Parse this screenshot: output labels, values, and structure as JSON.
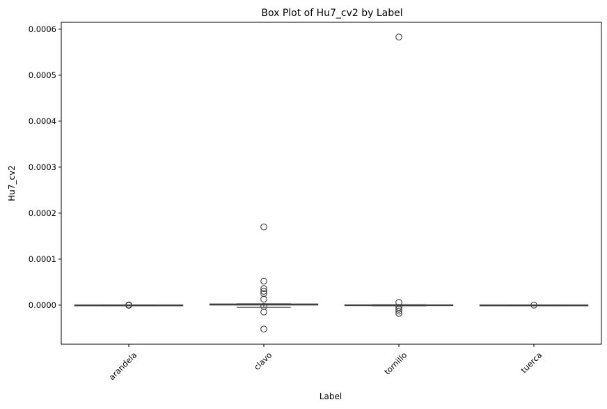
{
  "chart_data": {
    "type": "box",
    "title": "Box Plot of Hu7_cv2 by Label",
    "xlabel": "Label",
    "ylabel": "Hu7_cv2",
    "ylim": [
      -8.5e-05,
      0.000615
    ],
    "yticks": [
      0.0,
      0.0001,
      0.0002,
      0.0003,
      0.0004,
      0.0005,
      0.0006
    ],
    "ytick_labels": [
      "0.0000",
      "0.0001",
      "0.0002",
      "0.0003",
      "0.0004",
      "0.0005",
      "0.0006"
    ],
    "xtick_rotation": 45,
    "grid": false,
    "legend": "none",
    "box_color": "#ffffff",
    "line_color": "#3f3f3f",
    "categories": [
      "arandela",
      "clavo",
      "tornillo",
      "tuerca"
    ],
    "boxes": [
      {
        "label": "arandela",
        "q1": 0.0,
        "median": 0.0,
        "q3": 0.0,
        "whisker_low": 0.0,
        "whisker_high": 0.0,
        "outliers": [
          5e-07,
          -5e-07
        ]
      },
      {
        "label": "clavo",
        "q1": 2e-07,
        "median": 1.5e-06,
        "q3": 2.5e-06,
        "whisker_low": -5e-06,
        "whisker_high": 3e-06,
        "outliers": [
          0.00017,
          5.2e-05,
          3.6e-05,
          3e-05,
          2.5e-05,
          1.3e-05,
          -3e-06,
          -1.5e-05,
          -5.2e-05
        ]
      },
      {
        "label": "tornillo",
        "q1": -1e-06,
        "median": 0.0,
        "q3": 5e-07,
        "whisker_low": -1.5e-06,
        "whisker_high": 8e-07,
        "outliers": [
          0.000583,
          6e-06,
          -5e-06,
          -9e-06,
          -1.3e-05,
          -1.8e-05
        ]
      },
      {
        "label": "tuerca",
        "q1": 0.0,
        "median": 0.0,
        "q3": 0.0,
        "whisker_low": 0.0,
        "whisker_high": 0.0,
        "outliers": [
          0.0
        ]
      }
    ]
  }
}
